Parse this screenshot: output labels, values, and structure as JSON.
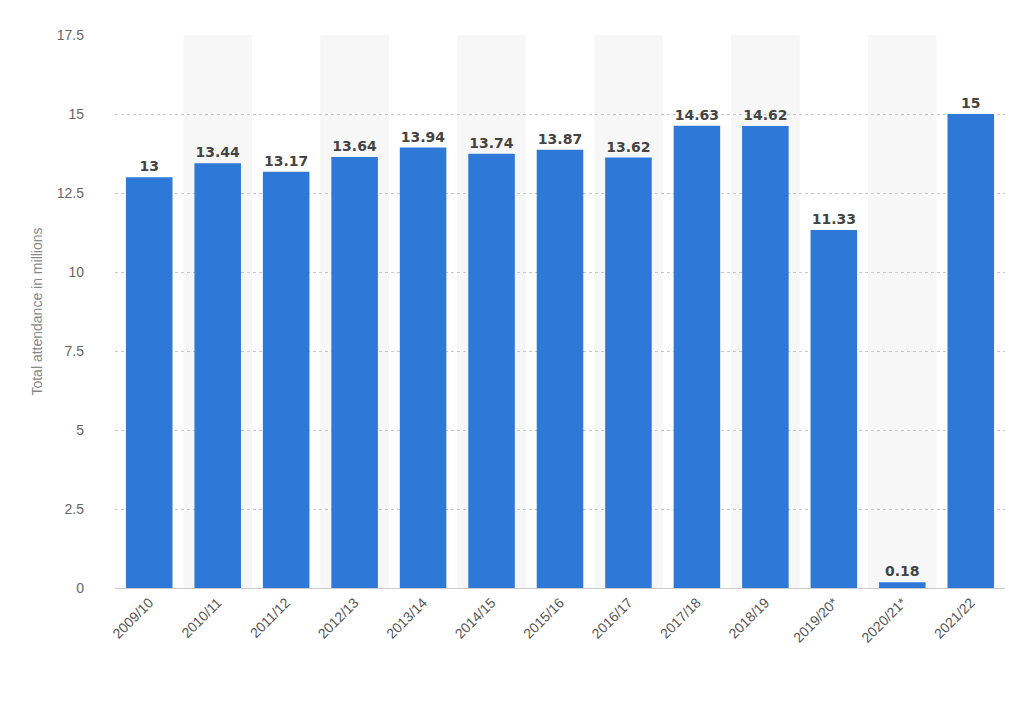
{
  "chart_data": {
    "type": "bar",
    "y_label": "Total attendance in millions",
    "categories": [
      "2009/10",
      "2010/11",
      "2011/12",
      "2012/13",
      "2013/14",
      "2014/15",
      "2015/16",
      "2016/17",
      "2017/18",
      "2018/19",
      "2019/20*",
      "2020/21*",
      "2021/22"
    ],
    "values": [
      13,
      13.44,
      13.17,
      13.64,
      13.94,
      13.74,
      13.87,
      13.62,
      14.63,
      14.62,
      11.33,
      0.18,
      15
    ],
    "color": "#2e78d8",
    "ylim": [
      0,
      17.5
    ],
    "yticks": [
      0,
      2.5,
      5,
      7.5,
      10,
      12.5,
      15,
      17.5
    ],
    "grid": true,
    "data_labels": true
  }
}
